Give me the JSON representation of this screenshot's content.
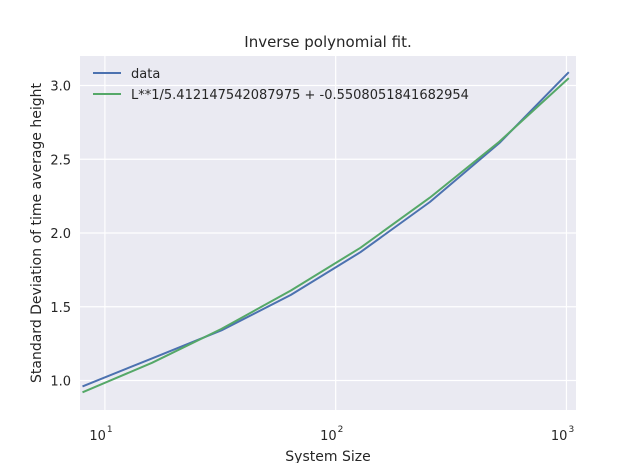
{
  "chart_data": {
    "type": "line",
    "title": "Inverse polynomial fit.",
    "xlabel": "System Size",
    "ylabel": "Standard Deviation of time average height",
    "xscale": "log",
    "xlim": [
      7.8,
      1100
    ],
    "ylim": [
      0.8,
      3.2
    ],
    "grid": true,
    "legend_position": "top-left",
    "x_ticks": [
      {
        "base": "10",
        "exp": "1",
        "value": 10
      },
      {
        "base": "10",
        "exp": "2",
        "value": 100
      },
      {
        "base": "10",
        "exp": "3",
        "value": 1000
      }
    ],
    "y_ticks": [
      {
        "label": "1.0",
        "value": 1.0
      },
      {
        "label": "1.5",
        "value": 1.5
      },
      {
        "label": "2.0",
        "value": 2.0
      },
      {
        "label": "2.5",
        "value": 2.5
      },
      {
        "label": "3.0",
        "value": 3.0
      }
    ],
    "x": [
      8,
      16,
      32,
      64,
      128,
      256,
      512,
      1024
    ],
    "series": [
      {
        "name": "data",
        "color": "#4c72b0",
        "values": [
          0.96,
          1.15,
          1.34,
          1.58,
          1.87,
          2.21,
          2.61,
          3.09
        ]
      },
      {
        "name": "L**1/5.412147542087975 + -0.5508051841682954",
        "color": "#55a868",
        "values": [
          0.92,
          1.12,
          1.35,
          1.61,
          1.9,
          2.24,
          2.62,
          3.05
        ]
      }
    ],
    "background_color": "#eaeaf2"
  }
}
